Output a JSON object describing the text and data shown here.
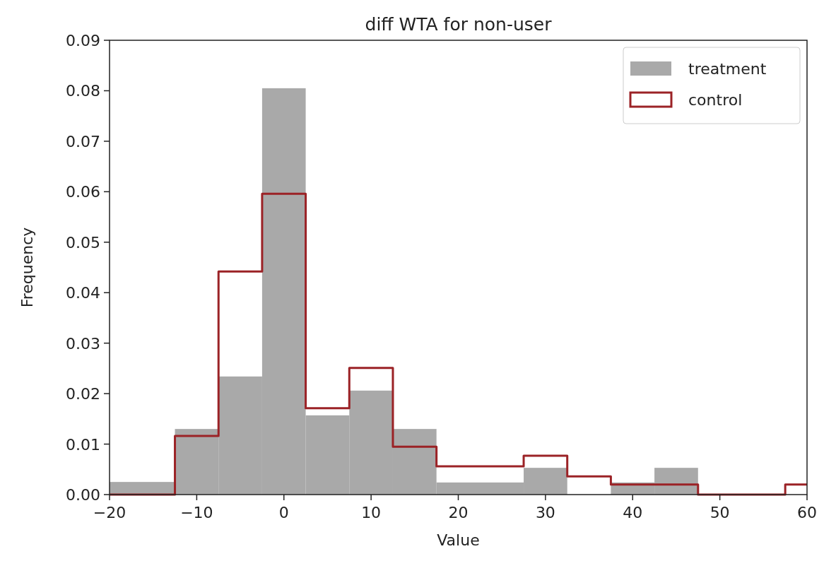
{
  "chart_data": {
    "type": "histogram",
    "title": "diff WTA for non-user",
    "xlabel": "Value",
    "ylabel": "Frequency",
    "bins": [
      -20,
      -12.5,
      -7.5,
      -2.5,
      2.5,
      7.5,
      12.5,
      17.5,
      27.5,
      32.5,
      37.5,
      42.5,
      47.5
    ],
    "series": [
      {
        "name": "treatment",
        "color": "#a9a9a9",
        "values": [
          0.0025,
          0.013,
          0.0234,
          0.0805,
          0.0157,
          0.0206,
          0.013,
          0.0024,
          0.0053,
          0,
          0.0024,
          0.0053
        ]
      },
      {
        "name": "control",
        "type": "step",
        "color": "#9b2226",
        "x": [
          -20,
          -12.5,
          -7.5,
          -2.5,
          2.5,
          7.5,
          12.5,
          17.5,
          27.5,
          32.5,
          37.5,
          47.5,
          57.5,
          60
        ],
        "values": [
          0,
          0.0116,
          0.0442,
          0.0596,
          0.0171,
          0.0251,
          0.0095,
          0.0056,
          0.0077,
          0.0036,
          0.002,
          0,
          0.002,
          0.002
        ]
      }
    ],
    "xlim": [
      -20,
      60
    ],
    "xticks": [
      {
        "value": -20,
        "label": "−20"
      },
      {
        "value": -10,
        "label": "−10"
      },
      0,
      10,
      20,
      30,
      40,
      50,
      60
    ],
    "ylim": [
      0,
      0.09
    ],
    "yticks": [
      {
        "value": 0,
        "label": "0.00"
      },
      {
        "value": 0.01,
        "label": "0.01"
      },
      {
        "value": 0.02,
        "label": "0.02"
      },
      {
        "value": 0.03,
        "label": "0.03"
      },
      {
        "value": 0.04,
        "label": "0.04"
      },
      {
        "value": 0.05,
        "label": "0.05"
      },
      {
        "value": 0.06,
        "label": "0.06"
      },
      {
        "value": 0.07,
        "label": "0.07"
      },
      {
        "value": 0.08,
        "label": "0.08"
      },
      {
        "value": 0.09,
        "label": "0.09"
      }
    ],
    "legend": "top right"
  }
}
